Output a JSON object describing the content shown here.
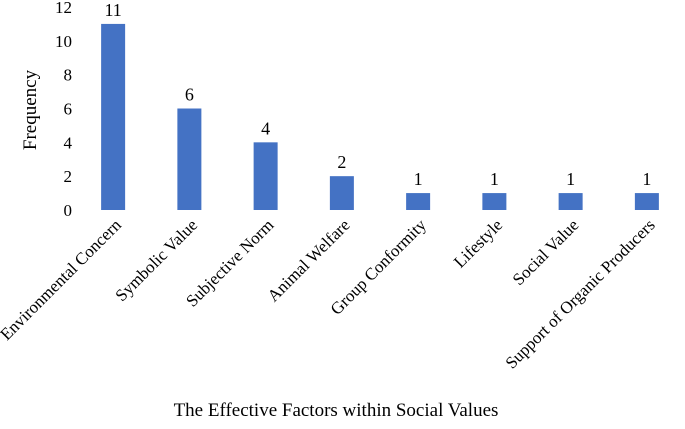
{
  "chart_data": {
    "type": "bar",
    "title": "",
    "xlabel": "The Effective Factors within Social Values",
    "ylabel": "Frequency",
    "ylim": [
      0,
      12
    ],
    "yticks": [
      0,
      2,
      4,
      6,
      8,
      10,
      12
    ],
    "grid": false,
    "legend": "none",
    "bar_color": "#4472c4",
    "categories": [
      "Environmental Concern",
      "Symbolic Value",
      "Subjective Norm",
      "Animal Welfare",
      "Group Conformity",
      "Lifestyle",
      "Social Value",
      "Support of Organic Producers"
    ],
    "values": [
      11,
      6,
      4,
      2,
      1,
      1,
      1,
      1
    ],
    "data_labels": [
      "11",
      "6",
      "4",
      "2",
      "1",
      "1",
      "1",
      "1"
    ]
  }
}
